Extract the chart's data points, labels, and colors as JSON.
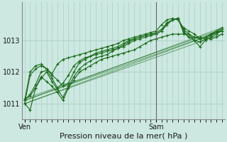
{
  "background_color": "#cce8e0",
  "plot_bg_color": "#cce8e0",
  "grid_color": "#aad0c8",
  "line_color": "#1a6b1a",
  "marker_color": "#1a6b1a",
  "title": "Pression niveau de la mer( hPa )",
  "xlabel_ven": "Ven",
  "xlabel_sam": "Sam",
  "ylim": [
    1010.5,
    1014.2
  ],
  "yticks": [
    1011,
    1012,
    1013
  ],
  "n_points": 37,
  "sam_idx": 24,
  "series_jagged": [
    [
      1011.0,
      1010.8,
      1011.5,
      1011.85,
      1011.7,
      1011.55,
      1011.35,
      1011.1,
      1011.5,
      1011.75,
      1012.0,
      1012.1,
      1012.2,
      1012.3,
      1012.4,
      1012.45,
      1012.5,
      1012.55,
      1012.6,
      1012.65,
      1012.7,
      1012.8,
      1012.9,
      1013.0,
      1013.05,
      1013.1,
      1013.15,
      1013.2,
      1013.2,
      1013.2,
      1013.2,
      1013.1,
      1013.1,
      1013.05,
      1013.05,
      1013.1,
      1013.2
    ],
    [
      1011.0,
      1011.9,
      1012.1,
      1012.2,
      1012.1,
      1011.95,
      1012.25,
      1012.4,
      1012.45,
      1012.5,
      1012.55,
      1012.6,
      1012.65,
      1012.7,
      1012.75,
      1012.8,
      1012.85,
      1012.9,
      1013.0,
      1013.05,
      1013.1,
      1013.15,
      1013.2,
      1013.25,
      1013.3,
      1013.5,
      1013.65,
      1013.7,
      1013.65,
      1013.4,
      1013.3,
      1013.2,
      1013.05,
      1013.1,
      1013.2,
      1013.25,
      1013.3
    ],
    [
      1011.1,
      1011.3,
      1011.6,
      1012.0,
      1012.05,
      1011.8,
      1011.5,
      1011.65,
      1011.9,
      1012.2,
      1012.35,
      1012.45,
      1012.5,
      1012.6,
      1012.65,
      1012.7,
      1012.75,
      1012.8,
      1012.9,
      1013.0,
      1013.05,
      1013.1,
      1013.15,
      1013.2,
      1013.2,
      1013.3,
      1013.55,
      1013.65,
      1013.7,
      1013.35,
      1013.2,
      1013.0,
      1012.8,
      1013.0,
      1013.1,
      1013.2,
      1013.3
    ],
    [
      1011.1,
      1012.0,
      1012.2,
      1012.25,
      1012.1,
      1011.9,
      1011.75,
      1011.55,
      1011.65,
      1012.0,
      1012.3,
      1012.4,
      1012.5,
      1012.55,
      1012.6,
      1012.65,
      1012.7,
      1012.75,
      1012.8,
      1012.9,
      1013.0,
      1013.05,
      1013.1,
      1013.15,
      1013.2,
      1013.3,
      1013.5,
      1013.65,
      1013.7,
      1013.3,
      1013.1,
      1013.1,
      1013.05,
      1013.1,
      1013.2,
      1013.3,
      1013.4
    ],
    [
      1011.15,
      1011.25,
      1011.5,
      1011.8,
      1012.0,
      1011.7,
      1011.45,
      1011.2,
      1011.55,
      1011.85,
      1012.1,
      1012.25,
      1012.35,
      1012.45,
      1012.5,
      1012.55,
      1012.65,
      1012.75,
      1012.85,
      1012.95,
      1013.05,
      1013.1,
      1013.15,
      1013.2,
      1013.25,
      1013.35,
      1013.55,
      1013.65,
      1013.7,
      1013.25,
      1013.1,
      1013.0,
      1012.95,
      1013.05,
      1013.15,
      1013.25,
      1013.35
    ]
  ],
  "series_straight": [
    [
      [
        0,
        1011.0
      ],
      [
        36,
        1013.2
      ]
    ],
    [
      [
        0,
        1011.0
      ],
      [
        36,
        1013.3
      ]
    ],
    [
      [
        0,
        1011.1
      ],
      [
        36,
        1013.3
      ]
    ],
    [
      [
        0,
        1011.1
      ],
      [
        36,
        1013.4
      ]
    ],
    [
      [
        0,
        1011.15
      ],
      [
        36,
        1013.35
      ]
    ]
  ]
}
